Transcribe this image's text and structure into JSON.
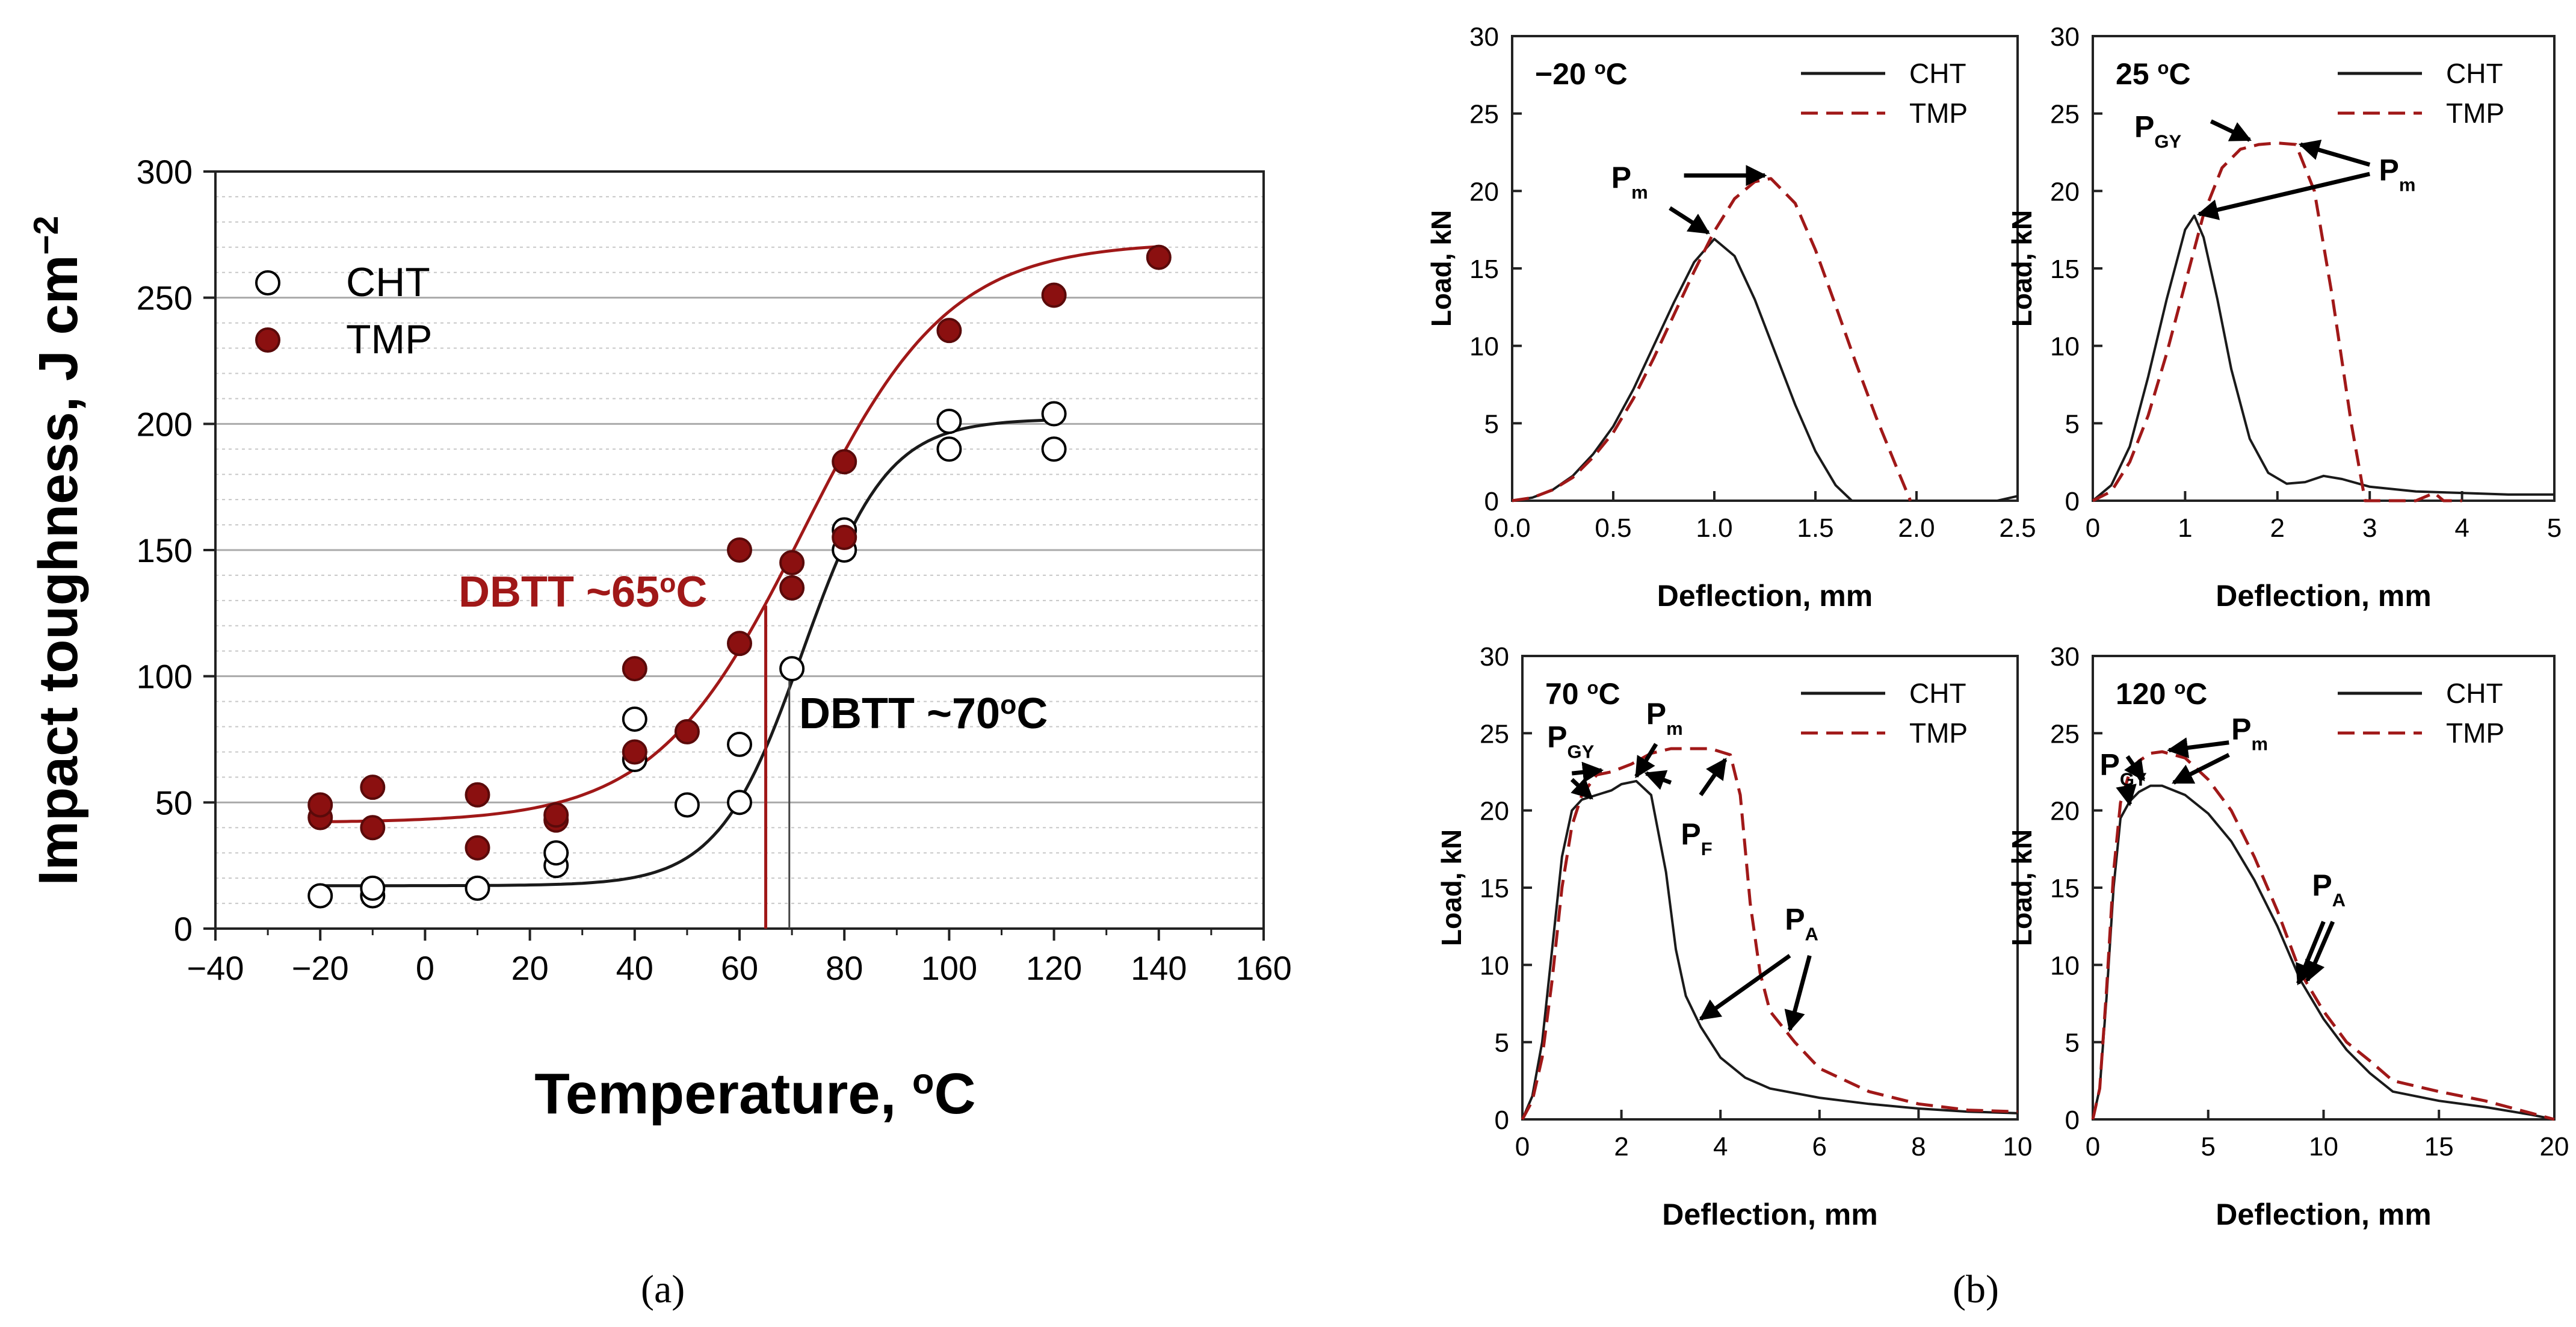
{
  "figure": {
    "caption_a": "(a)",
    "caption_b": "(b)"
  },
  "colors": {
    "cht": "#1a1a1a",
    "tmp": "#a01818",
    "tmp_fill": "#8b1010",
    "grid": "#c8c8c8",
    "axis": "#222222"
  },
  "chart_data": [
    {
      "type": "scatter",
      "id": "a",
      "title": "",
      "xlabel": "Temperature, oC",
      "ylabel": "Impact toughness, J cm-2",
      "xlim": [
        -40,
        160
      ],
      "ylim": [
        0,
        300
      ],
      "xticks": [
        "−40",
        "−20",
        "0",
        "20",
        "40",
        "60",
        "80",
        "100",
        "120",
        "140",
        "160"
      ],
      "yticks": [
        "0",
        "50",
        "100",
        "150",
        "200",
        "250",
        "300"
      ],
      "legend": [
        "CHT",
        "TMP"
      ],
      "annotations": {
        "tmp_dbtt": "DBTT ~65°C",
        "cht_dbtt": "DBTT ~70°C"
      },
      "dbtt_values": {
        "TMP": 65,
        "CHT": 70
      },
      "series": [
        {
          "name": "CHT",
          "marker": "open-circle",
          "points": [
            [
              -20,
              13
            ],
            [
              -10,
              13
            ],
            [
              -10,
              16
            ],
            [
              10,
              16
            ],
            [
              25,
              25
            ],
            [
              25,
              30
            ],
            [
              40,
              67
            ],
            [
              40,
              83
            ],
            [
              50,
              49
            ],
            [
              60,
              50
            ],
            [
              60,
              73
            ],
            [
              70,
              103
            ],
            [
              80,
              150
            ],
            [
              80,
              158
            ],
            [
              100,
              190
            ],
            [
              100,
              201
            ],
            [
              120,
              190
            ],
            [
              120,
              204
            ]
          ],
          "fit": {
            "base": 17,
            "top": 202,
            "mid": 72,
            "width": 8
          }
        },
        {
          "name": "TMP",
          "marker": "filled-circle",
          "points": [
            [
              -20,
              44
            ],
            [
              -20,
              49
            ],
            [
              -10,
              56
            ],
            [
              -10,
              40
            ],
            [
              10,
              32
            ],
            [
              10,
              53
            ],
            [
              25,
              43
            ],
            [
              25,
              45
            ],
            [
              40,
              70
            ],
            [
              40,
              103
            ],
            [
              50,
              78
            ],
            [
              60,
              150
            ],
            [
              60,
              113
            ],
            [
              70,
              135
            ],
            [
              70,
              145
            ],
            [
              80,
              155
            ],
            [
              80,
              185
            ],
            [
              100,
              237
            ],
            [
              120,
              251
            ],
            [
              140,
              266
            ]
          ],
          "fit": {
            "base": 42,
            "top": 272,
            "mid": 72,
            "width": 14
          }
        }
      ]
    },
    {
      "type": "line",
      "id": "b1",
      "annotation": "−20 °C",
      "xlabel": "Deflection, mm",
      "ylabel": "Load, kN",
      "xlim": [
        0,
        2.5
      ],
      "ylim": [
        0,
        30
      ],
      "xticks": [
        "0.0",
        "0.5",
        "1.0",
        "1.5",
        "2.0",
        "2.5"
      ],
      "yticks": [
        "0",
        "5",
        "10",
        "15",
        "20",
        "25",
        "30"
      ],
      "legend": [
        "CHT",
        "TMP"
      ],
      "series": [
        {
          "name": "CHT",
          "x": [
            0,
            0.1,
            0.2,
            0.3,
            0.4,
            0.5,
            0.6,
            0.7,
            0.8,
            0.9,
            1.0,
            1.1,
            1.2,
            1.3,
            1.4,
            1.5,
            1.6,
            1.68,
            2.4,
            2.5
          ],
          "y": [
            0,
            0.2,
            0.7,
            1.6,
            3.0,
            4.8,
            7.2,
            10.0,
            12.8,
            15.4,
            16.9,
            15.8,
            13.0,
            9.6,
            6.2,
            3.2,
            1.0,
            0,
            0,
            0.3
          ]
        },
        {
          "name": "TMP",
          "x": [
            0,
            0.1,
            0.2,
            0.3,
            0.4,
            0.5,
            0.6,
            0.7,
            0.8,
            0.9,
            1.0,
            1.1,
            1.2,
            1.28,
            1.4,
            1.5,
            1.6,
            1.7,
            1.8,
            1.9,
            1.97
          ],
          "y": [
            0,
            0.2,
            0.7,
            1.5,
            2.8,
            4.4,
            6.6,
            9.2,
            12.0,
            14.8,
            17.4,
            19.5,
            20.6,
            20.8,
            19.2,
            16.2,
            12.6,
            8.9,
            5.4,
            2.2,
            0
          ]
        }
      ],
      "callouts": [
        {
          "label": "P",
          "sub": "m"
        }
      ]
    },
    {
      "type": "line",
      "id": "b2",
      "annotation": "25 °C",
      "xlabel": "Deflection, mm",
      "ylabel": "Load, kN",
      "xlim": [
        0,
        5
      ],
      "ylim": [
        0,
        30
      ],
      "xticks": [
        "0",
        "1",
        "2",
        "3",
        "4",
        "5"
      ],
      "yticks": [
        "0",
        "5",
        "10",
        "15",
        "20",
        "25",
        "30"
      ],
      "legend": [
        "CHT",
        "TMP"
      ],
      "series": [
        {
          "name": "CHT",
          "x": [
            0,
            0.2,
            0.4,
            0.6,
            0.8,
            1.0,
            1.1,
            1.2,
            1.35,
            1.5,
            1.7,
            1.9,
            2.1,
            2.3,
            2.5,
            2.7,
            3.0,
            3.5,
            4.0,
            4.5,
            5.0
          ],
          "y": [
            0,
            1.0,
            3.5,
            8.0,
            13.0,
            17.5,
            18.4,
            17.0,
            13.0,
            8.5,
            4.0,
            1.8,
            1.1,
            1.2,
            1.6,
            1.4,
            0.9,
            0.6,
            0.5,
            0.4,
            0.4
          ]
        },
        {
          "name": "TMP",
          "x": [
            0,
            0.2,
            0.4,
            0.6,
            0.8,
            1.0,
            1.2,
            1.4,
            1.6,
            1.8,
            2.0,
            2.2,
            2.4,
            2.6,
            2.8,
            2.95,
            3.5,
            3.7,
            3.8,
            4.0
          ],
          "y": [
            0,
            0.6,
            2.5,
            5.5,
            9.5,
            14.0,
            18.5,
            21.5,
            22.7,
            23.0,
            23.1,
            23.0,
            20.0,
            13.0,
            5.0,
            0,
            0,
            0.5,
            0,
            0
          ]
        }
      ],
      "callouts": [
        {
          "label": "P",
          "sub": "GY"
        },
        {
          "label": "P",
          "sub": "m"
        }
      ]
    },
    {
      "type": "line",
      "id": "b3",
      "annotation": "70 °C",
      "xlabel": "Deflection, mm",
      "ylabel": "Load, kN",
      "xlim": [
        0,
        10
      ],
      "ylim": [
        0,
        30
      ],
      "xticks": [
        "0",
        "2",
        "4",
        "6",
        "8",
        "10"
      ],
      "yticks": [
        "0",
        "5",
        "10",
        "15",
        "20",
        "25",
        "30"
      ],
      "legend": [
        "CHT",
        "TMP"
      ],
      "series": [
        {
          "name": "CHT",
          "x": [
            0,
            0.2,
            0.4,
            0.6,
            0.8,
            1.0,
            1.2,
            1.5,
            1.8,
            2.0,
            2.3,
            2.6,
            2.9,
            3.1,
            3.3,
            3.6,
            4.0,
            4.5,
            5.0,
            6.0,
            7.0,
            8.0,
            9.0,
            10.0
          ],
          "y": [
            0,
            1.5,
            5.0,
            11.0,
            17.0,
            20.0,
            20.7,
            21.0,
            21.3,
            21.7,
            21.9,
            21.0,
            16.0,
            11.0,
            8.0,
            6.0,
            4.0,
            2.7,
            2.0,
            1.4,
            1.0,
            0.7,
            0.5,
            0.4
          ]
        },
        {
          "name": "TMP",
          "x": [
            0,
            0.2,
            0.4,
            0.6,
            0.8,
            1.0,
            1.2,
            1.5,
            1.8,
            2.2,
            2.6,
            3.0,
            3.4,
            3.8,
            4.2,
            4.4,
            4.6,
            4.8,
            5.0,
            5.5,
            6.0,
            7.0,
            8.0,
            9.0,
            10.0
          ],
          "y": [
            0,
            1.2,
            4.0,
            9.0,
            15.0,
            19.0,
            21.0,
            22.3,
            22.5,
            23.0,
            23.7,
            24.0,
            24.0,
            24.0,
            23.6,
            21.0,
            14.0,
            9.5,
            7.0,
            5.0,
            3.3,
            1.8,
            1.0,
            0.6,
            0.5
          ]
        }
      ],
      "callouts": [
        {
          "label": "P",
          "sub": "GY"
        },
        {
          "label": "P",
          "sub": "m"
        },
        {
          "label": "P",
          "sub": "F"
        },
        {
          "label": "P",
          "sub": "A"
        }
      ]
    },
    {
      "type": "line",
      "id": "b4",
      "annotation": "120 °C",
      "xlabel": "Deflection, mm",
      "ylabel": "Load, kN",
      "xlim": [
        0,
        20
      ],
      "ylim": [
        0,
        30
      ],
      "xticks": [
        "0",
        "5",
        "10",
        "15",
        "20"
      ],
      "yticks": [
        "0",
        "5",
        "10",
        "15",
        "20",
        "25",
        "30"
      ],
      "legend": [
        "CHT",
        "TMP"
      ],
      "series": [
        {
          "name": "CHT",
          "x": [
            0,
            0.3,
            0.6,
            0.9,
            1.2,
            1.6,
            2.0,
            2.5,
            3.0,
            4.0,
            5.0,
            6.0,
            7.0,
            8.0,
            9.0,
            10.0,
            11.0,
            12.0,
            13.0,
            15.0,
            17.0,
            19.0,
            20.0
          ],
          "y": [
            0,
            2.0,
            8.0,
            15.0,
            19.5,
            20.6,
            21.2,
            21.6,
            21.6,
            21.0,
            19.8,
            18.0,
            15.5,
            12.5,
            9.0,
            6.5,
            4.5,
            3.0,
            1.8,
            1.2,
            0.8,
            0.3,
            0
          ]
        },
        {
          "name": "TMP",
          "x": [
            0,
            0.3,
            0.6,
            0.9,
            1.2,
            1.6,
            2.0,
            2.5,
            3.0,
            4.0,
            5.0,
            6.0,
            7.0,
            8.0,
            9.0,
            10.0,
            11.0,
            12.0,
            13.0,
            15.0,
            17.0,
            19.0,
            20.0
          ],
          "y": [
            0,
            2.0,
            8.5,
            16.0,
            20.5,
            22.5,
            23.2,
            23.7,
            23.8,
            23.4,
            22.0,
            20.0,
            17.0,
            13.5,
            9.5,
            7.0,
            5.0,
            3.8,
            2.5,
            1.8,
            1.2,
            0.4,
            0
          ]
        }
      ],
      "callouts": [
        {
          "label": "P",
          "sub": "GY"
        },
        {
          "label": "P",
          "sub": "m"
        },
        {
          "label": "P",
          "sub": "A"
        }
      ]
    }
  ]
}
